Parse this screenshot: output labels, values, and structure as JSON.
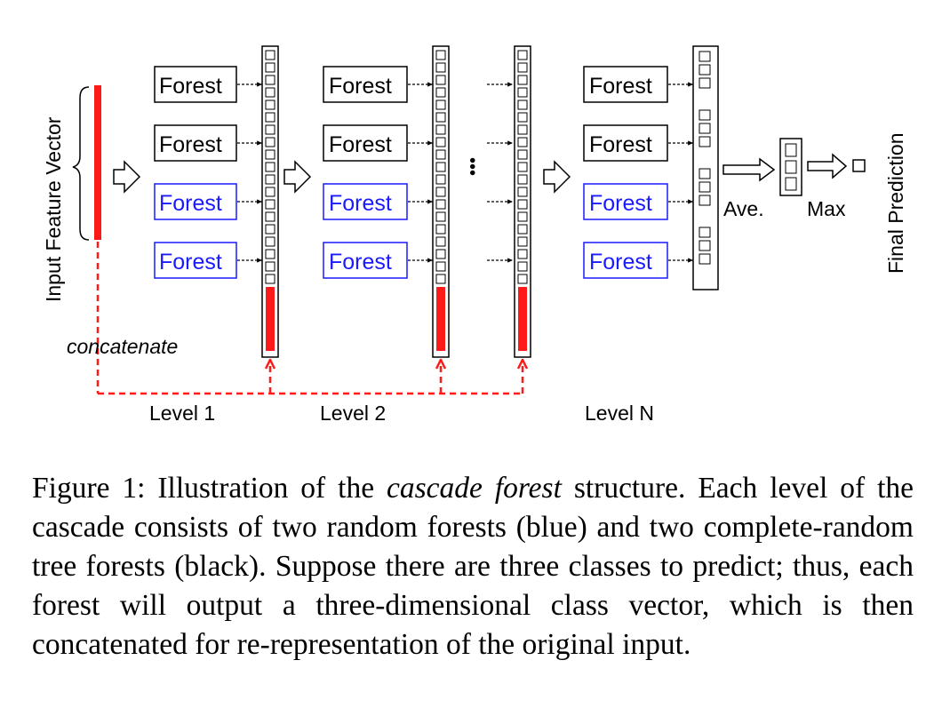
{
  "diagram": {
    "input_label": "Input Feature Vector",
    "concat_label": "concatenate",
    "forest_label": "Forest",
    "levels": [
      "Level 1",
      "Level 2",
      "Level N"
    ],
    "ave_label": "Ave.",
    "max_label": "Max",
    "output_label": "Final Prediction",
    "ellipsis": "•••",
    "colors": {
      "blue_forest": "#1a1aff",
      "black_forest": "#000000",
      "red": "#ff1a1a"
    }
  },
  "caption": {
    "prefix": "Figure 1:  Illustration of the ",
    "emph": "cascade forest",
    "rest": " structure.  Each level of the cascade consists of two random forests (blue) and two complete-random tree forests (black). Suppose there are three classes to predict; thus, each forest will output a three-dimensional class vector, which is then concatenated for re-representation of the original input."
  }
}
